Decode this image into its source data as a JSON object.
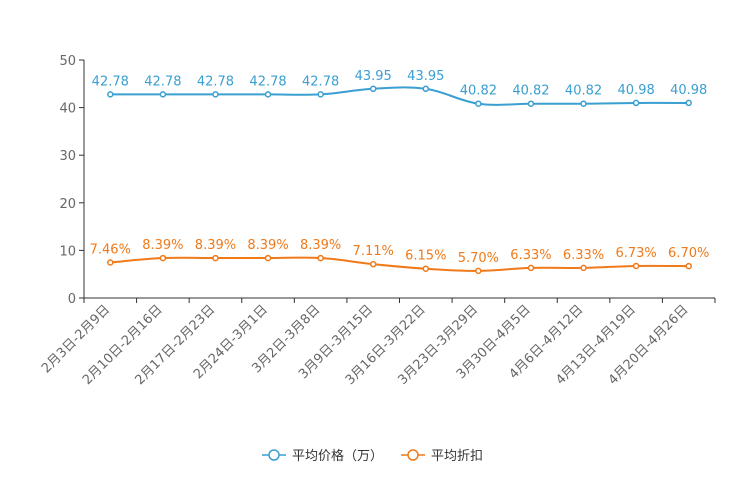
{
  "chart_data": {
    "type": "line",
    "title": "",
    "xlabel": "",
    "ylabel": "",
    "ylim": [
      0,
      50
    ],
    "yticks": [
      0,
      10,
      20,
      30,
      40,
      50
    ],
    "grid": false,
    "legend_position": "bottom-center",
    "categories": [
      "2月3日-2月9日",
      "2月10日-2月16日",
      "2月17日-2月23日",
      "2月24日-3月1日",
      "3月2日-3月8日",
      "3月9日-3月15日",
      "3月16日-3月22日",
      "3月23日-3月29日",
      "3月30日-4月5日",
      "4月6日-4月12日",
      "4月13日-4月19日",
      "4月20日-4月26日"
    ],
    "series": [
      {
        "name": "平均价格（万）",
        "color": "#3a9fd1",
        "values": [
          42.78,
          42.78,
          42.78,
          42.78,
          42.78,
          43.95,
          43.95,
          40.82,
          40.82,
          40.82,
          40.98,
          40.98
        ],
        "labels": [
          "42.78",
          "42.78",
          "42.78",
          "42.78",
          "42.78",
          "43.95",
          "43.95",
          "40.82",
          "40.82",
          "40.82",
          "40.98",
          "40.98"
        ]
      },
      {
        "name": "平均折扣",
        "color": "#f07a1a",
        "values": [
          7.46,
          8.39,
          8.39,
          8.39,
          8.39,
          7.11,
          6.15,
          5.7,
          6.33,
          6.33,
          6.73,
          6.7
        ],
        "labels": [
          "7.46%",
          "8.39%",
          "8.39%",
          "8.39%",
          "8.39%",
          "7.11%",
          "6.15%",
          "5.70%",
          "6.33%",
          "6.33%",
          "6.73%",
          "6.70%"
        ]
      }
    ]
  }
}
